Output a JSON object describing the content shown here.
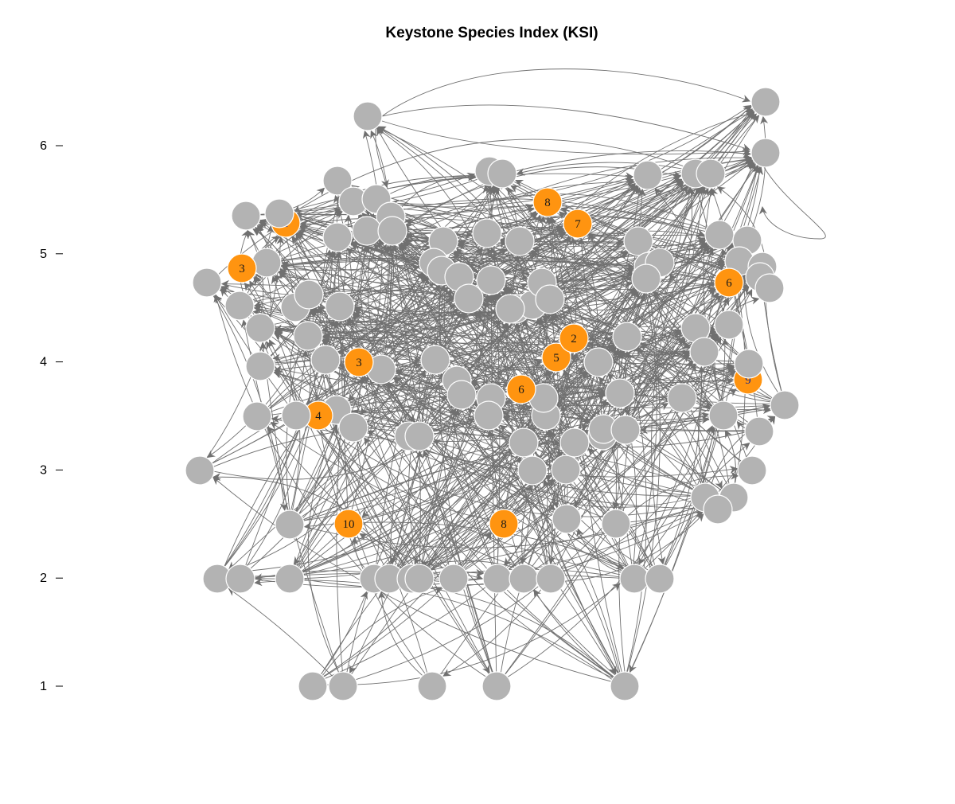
{
  "title": "Keystone Species Index (KSI)",
  "y_axis": {
    "ticks": [
      "1",
      "2",
      "3",
      "4",
      "5",
      "6"
    ]
  },
  "colors": {
    "keystone_node": "#ff9410",
    "other_node": "#b3b3b3",
    "edge": "#707070",
    "node_border": "#ffffff"
  },
  "keystone_nodes": [
    {
      "label": "1",
      "trophic_level": 5.28
    },
    {
      "label": "3",
      "trophic_level": 4.87
    },
    {
      "label": "3",
      "trophic_level": 4.0
    },
    {
      "label": "4",
      "trophic_level": 3.5
    },
    {
      "label": "10",
      "trophic_level": 2.5
    },
    {
      "label": "8",
      "trophic_level": 2.5
    },
    {
      "label": "6",
      "trophic_level": 3.74
    },
    {
      "label": "5",
      "trophic_level": 4.04
    },
    {
      "label": "2",
      "trophic_level": 4.22
    },
    {
      "label": "8",
      "trophic_level": 5.48
    },
    {
      "label": "7",
      "trophic_level": 5.29
    },
    {
      "label": "6",
      "trophic_level": 4.73
    },
    {
      "label": "9",
      "trophic_level": 3.86
    }
  ]
}
